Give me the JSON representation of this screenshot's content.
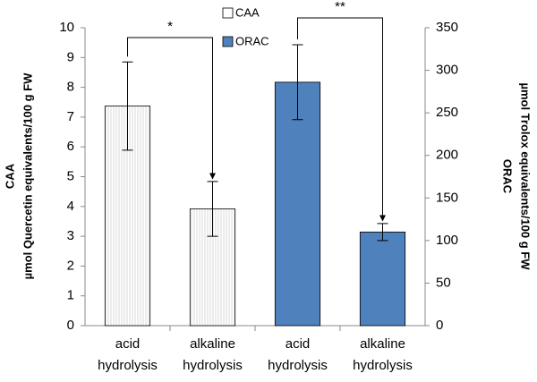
{
  "chart_data": {
    "type": "bar",
    "categories": [
      "acid hydrolysis",
      "alkaline hydrolysis",
      "acid hydrolysis",
      "alkaline hydrolysis"
    ],
    "series": [
      {
        "name": "CAA",
        "color": "#ffffff",
        "values": [
          7.37,
          3.92,
          null,
          null
        ],
        "errors": [
          1.48,
          0.92,
          null,
          null
        ]
      },
      {
        "name": "ORAC",
        "color": "#4f81bd",
        "axis": "y2",
        "values": [
          null,
          null,
          286,
          110
        ],
        "errors": [
          null,
          null,
          44,
          10
        ]
      }
    ],
    "ylabel": [
      "CAA",
      "µmol Quercetin equivalents/100 g FW"
    ],
    "y2label": [
      "ORAC",
      "µmol Trolox equivalents/100 g FW"
    ],
    "ylim": [
      0,
      10
    ],
    "yticks": [
      0,
      1,
      2,
      3,
      4,
      5,
      6,
      7,
      8,
      9,
      10
    ],
    "y2lim": [
      0,
      350
    ],
    "y2ticks": [
      0,
      50,
      100,
      150,
      200,
      250,
      300,
      350
    ],
    "annotations": [
      {
        "text": "*"
      },
      {
        "text": "**"
      }
    ],
    "grid": false
  }
}
